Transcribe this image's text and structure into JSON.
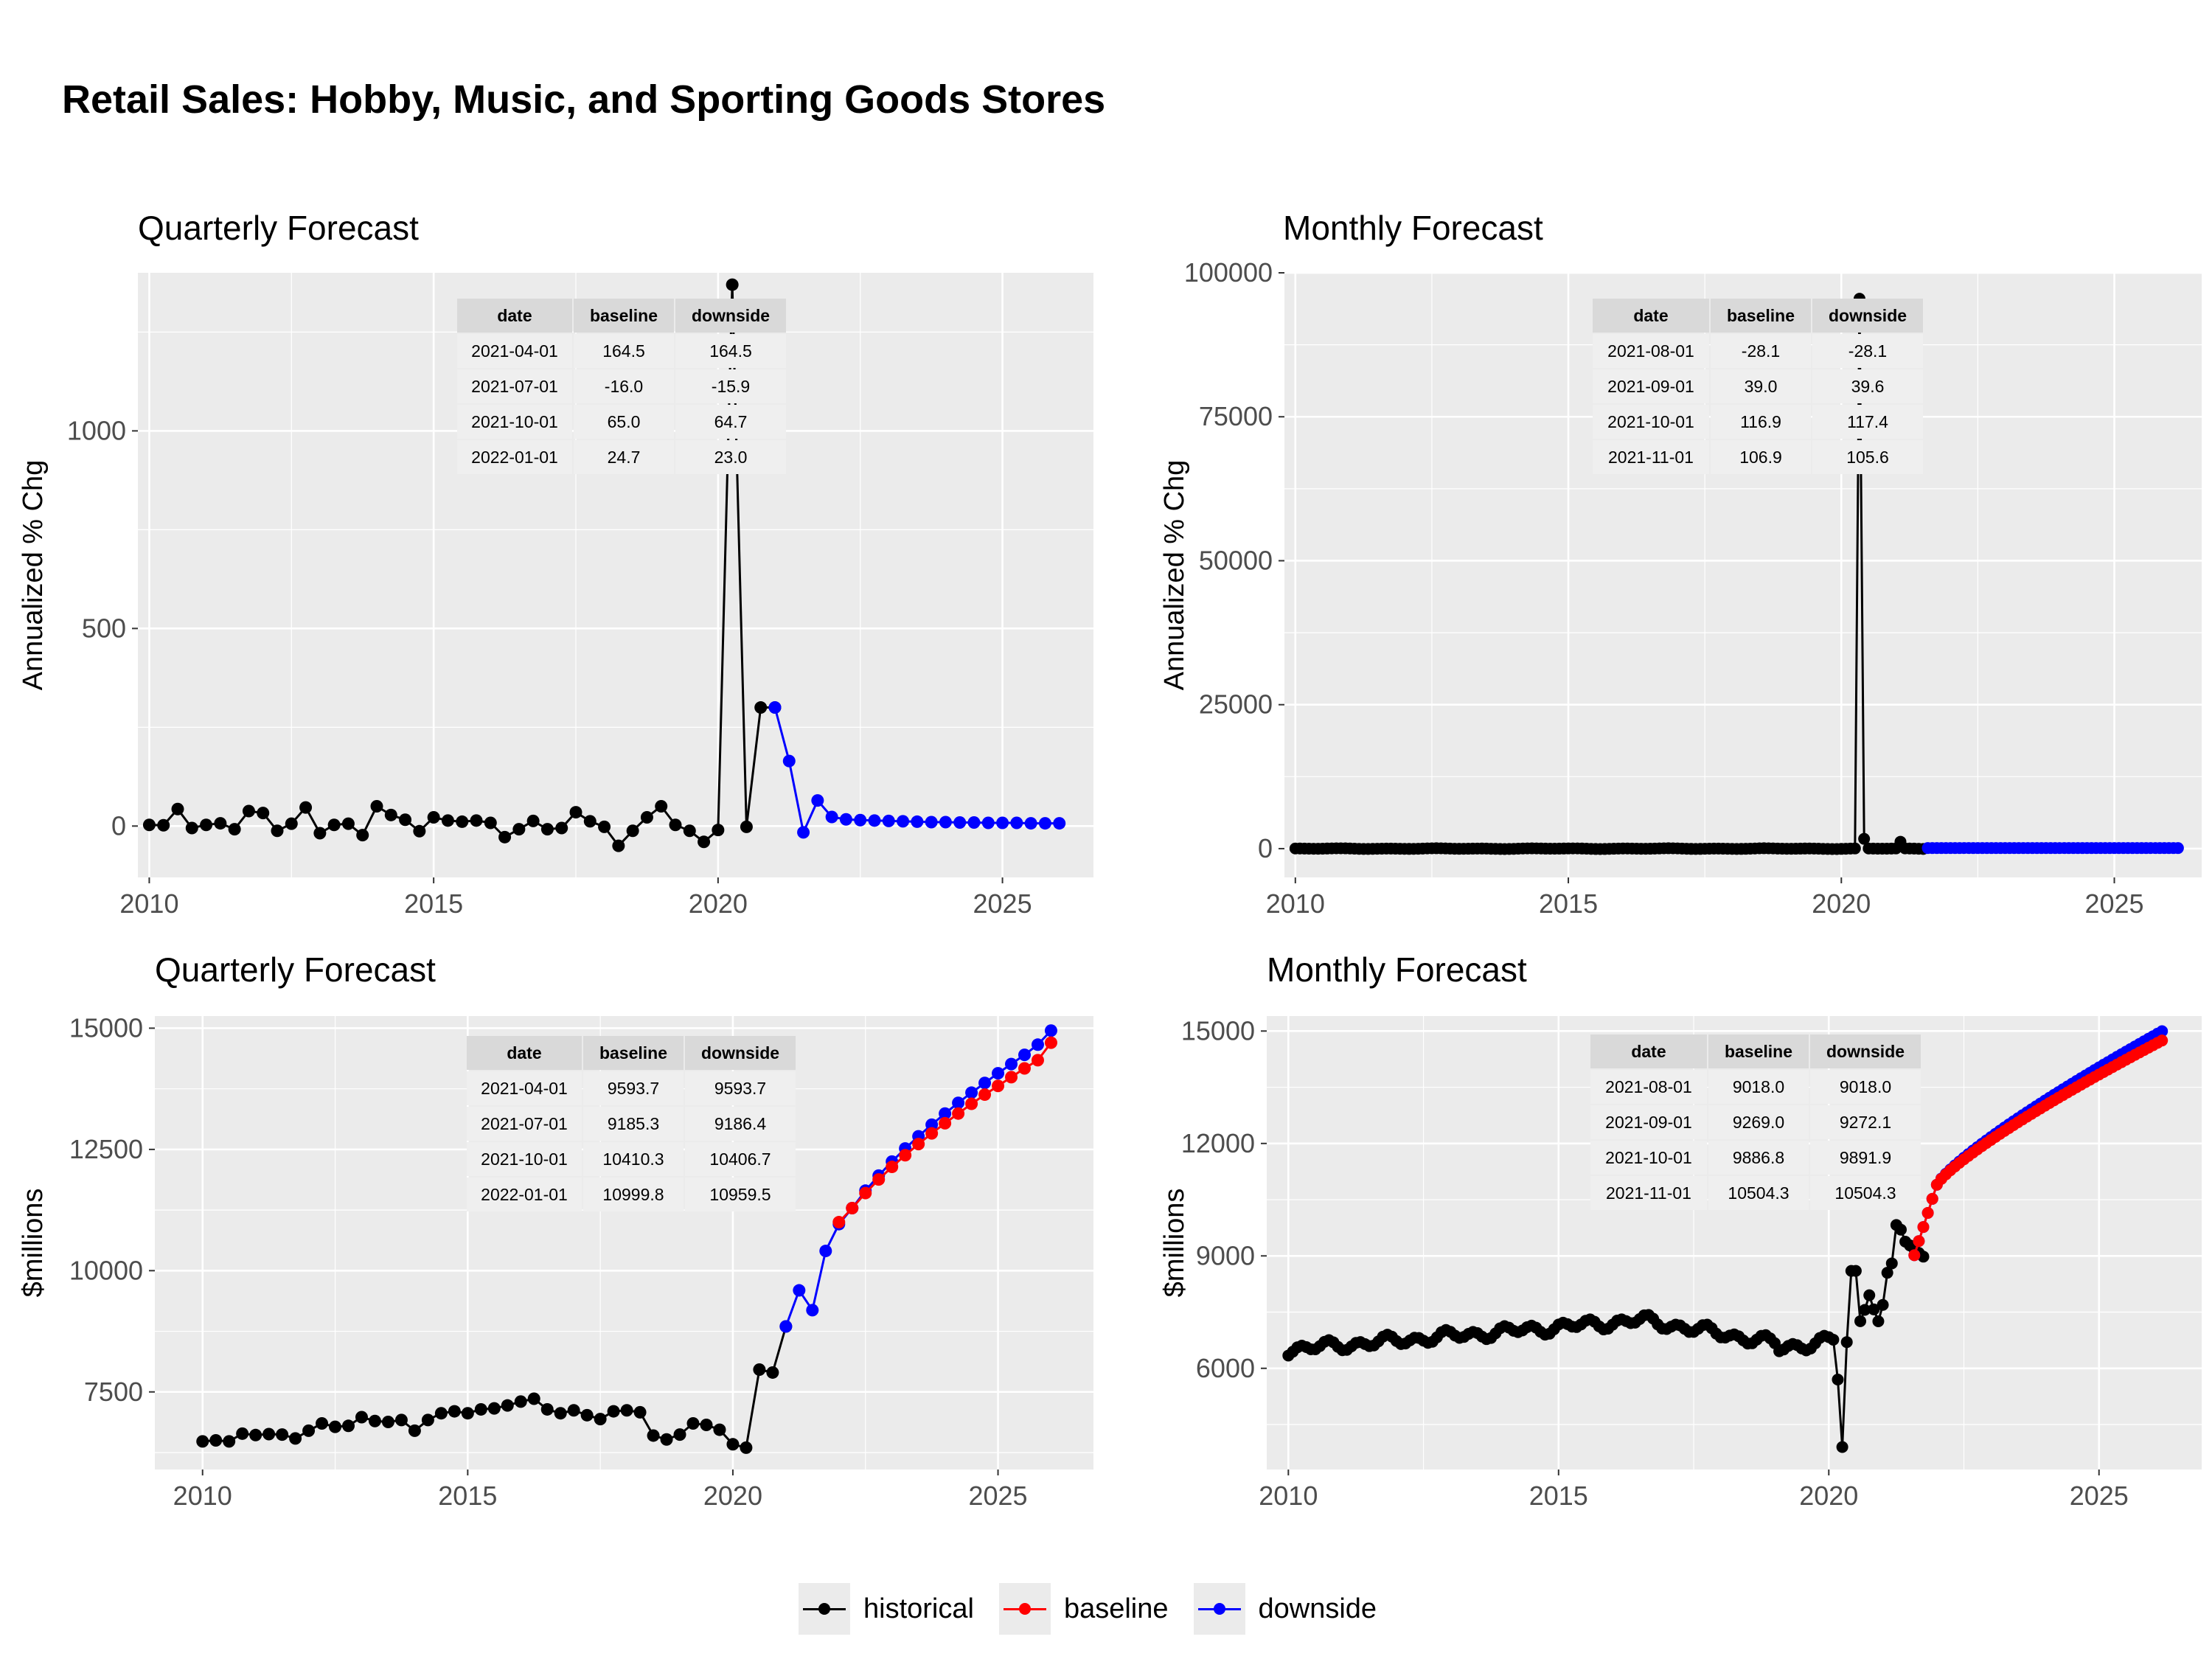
{
  "title": "Retail Sales: Hobby, Music, and Sporting Goods Stores",
  "legend": {
    "items": [
      {
        "label": "historical",
        "color": "#000000"
      },
      {
        "label": "baseline",
        "color": "#ff0000"
      },
      {
        "label": "downside",
        "color": "#0000ff"
      }
    ]
  },
  "chart_data": [
    {
      "id": "q_pct",
      "type": "line",
      "title": "Quarterly Forecast",
      "ylabel": "Annualized % Chg",
      "xlabel": "",
      "xlim": [
        2009.8,
        2026.6
      ],
      "ylim": [
        -130,
        1400
      ],
      "xticks": [
        2010,
        2015,
        2020,
        2025
      ],
      "yticks": [
        0,
        500,
        1000
      ],
      "grid": true,
      "series": [
        {
          "name": "historical",
          "color": "#000000",
          "x": [
            2010.0,
            2010.25,
            2010.5,
            2010.75,
            2011.0,
            2011.25,
            2011.5,
            2011.75,
            2012.0,
            2012.25,
            2012.5,
            2012.75,
            2013.0,
            2013.25,
            2013.5,
            2013.75,
            2014.0,
            2014.25,
            2014.5,
            2014.75,
            2015.0,
            2015.25,
            2015.5,
            2015.75,
            2016.0,
            2016.25,
            2016.5,
            2016.75,
            2017.0,
            2017.25,
            2017.5,
            2017.75,
            2018.0,
            2018.25,
            2018.5,
            2018.75,
            2019.0,
            2019.25,
            2019.5,
            2019.75,
            2020.0,
            2020.25,
            2020.5,
            2020.75,
            2021.0
          ],
          "values": [
            3,
            2,
            43,
            -5,
            3,
            7,
            -8,
            38,
            33,
            -12,
            6,
            47,
            -18,
            3,
            6,
            -23,
            50,
            28,
            16,
            -13,
            22,
            14,
            11,
            14,
            8,
            -28,
            -8,
            13,
            -8,
            -5,
            35,
            12,
            -2,
            -50,
            -12,
            22,
            50,
            3,
            -12,
            -40,
            -10,
            1370,
            -2,
            300,
            300
          ]
        },
        {
          "name": "downside",
          "color": "#0000ff",
          "x": [
            2021.0,
            2021.25,
            2021.5,
            2021.75,
            2022.0,
            2022.25,
            2022.5,
            2022.75,
            2023.0,
            2023.25,
            2023.5,
            2023.75,
            2024.0,
            2024.25,
            2024.5,
            2024.75,
            2025.0,
            2025.25,
            2025.5,
            2025.75,
            2026.0
          ],
          "values": [
            300,
            164.5,
            -15.9,
            64.7,
            23.0,
            17,
            15,
            14,
            13,
            12,
            11,
            10,
            10,
            9,
            9,
            8,
            8,
            8,
            7,
            7,
            7
          ]
        }
      ],
      "table": {
        "headers": [
          "date",
          "baseline",
          "downside"
        ],
        "rows": [
          [
            "2021-04-01",
            "164.5",
            "164.5"
          ],
          [
            "2021-07-01",
            "-16.0",
            "-15.9"
          ],
          [
            "2021-10-01",
            "65.0",
            "64.7"
          ],
          [
            "2022-01-01",
            "24.7",
            "23.0"
          ]
        ]
      }
    },
    {
      "id": "m_pct",
      "type": "line",
      "title": "Monthly Forecast",
      "ylabel": "Annualized % Chg",
      "xlabel": "",
      "xlim": [
        2009.8,
        2026.6
      ],
      "ylim": [
        -5000,
        100000
      ],
      "xticks": [
        2010,
        2015,
        2020,
        2025
      ],
      "yticks": [
        0,
        25000,
        50000,
        75000,
        100000
      ],
      "grid": true,
      "generator": "monthly_pct",
      "series": [
        {
          "name": "historical",
          "color": "#000000",
          "start": 2010.0,
          "end": 2021.5,
          "spike_x": 2020.333,
          "spike_y": 95500,
          "post_spike_y": 1700,
          "bump_x": 2021.08,
          "bump_y": 1200
        },
        {
          "name": "downside",
          "color": "#0000ff",
          "start": 2021.583,
          "end": 2026.167,
          "level": 100
        }
      ],
      "table": {
        "headers": [
          "date",
          "baseline",
          "downside"
        ],
        "rows": [
          [
            "2021-08-01",
            "-28.1",
            "-28.1"
          ],
          [
            "2021-09-01",
            "39.0",
            "39.6"
          ],
          [
            "2021-10-01",
            "116.9",
            "117.4"
          ],
          [
            "2021-11-01",
            "106.9",
            "105.6"
          ]
        ]
      }
    },
    {
      "id": "q_lvl",
      "type": "line",
      "title": "Quarterly Forecast",
      "ylabel": "$millions",
      "xlabel": "",
      "xlim": [
        2009.1,
        2026.8
      ],
      "ylim": [
        5900,
        15250
      ],
      "xticks": [
        2010,
        2015,
        2020,
        2025
      ],
      "yticks": [
        7500,
        10000,
        12500,
        15000
      ],
      "grid": true,
      "series": [
        {
          "name": "historical",
          "color": "#000000",
          "x": [
            2010.0,
            2010.25,
            2010.5,
            2010.75,
            2011.0,
            2011.25,
            2011.5,
            2011.75,
            2012.0,
            2012.25,
            2012.5,
            2012.75,
            2013.0,
            2013.25,
            2013.5,
            2013.75,
            2014.0,
            2014.25,
            2014.5,
            2014.75,
            2015.0,
            2015.25,
            2015.5,
            2015.75,
            2016.0,
            2016.25,
            2016.5,
            2016.75,
            2017.0,
            2017.25,
            2017.5,
            2017.75,
            2018.0,
            2018.25,
            2018.5,
            2018.75,
            2019.0,
            2019.25,
            2019.5,
            2019.75,
            2020.0,
            2020.25,
            2020.5,
            2020.75,
            2021.0
          ],
          "values": [
            6480,
            6500,
            6480,
            6640,
            6610,
            6630,
            6620,
            6540,
            6700,
            6850,
            6780,
            6800,
            6980,
            6900,
            6880,
            6920,
            6700,
            6920,
            7060,
            7100,
            7060,
            7140,
            7160,
            7220,
            7300,
            7360,
            7140,
            7060,
            7120,
            7020,
            6940,
            7100,
            7120,
            7080,
            6600,
            6520,
            6620,
            6850,
            6820,
            6720,
            6420,
            6350,
            7960,
            7900,
            8850
          ]
        },
        {
          "name": "baseline",
          "color": "#ff0000",
          "x": [
            2022.0,
            2022.25,
            2022.5,
            2022.75,
            2023.0,
            2023.25,
            2023.5,
            2023.75,
            2024.0,
            2024.25,
            2024.5,
            2024.75,
            2025.0,
            2025.25,
            2025.5,
            2025.75,
            2026.0
          ],
          "values": [
            10999.8,
            11290,
            11600,
            11880,
            12140,
            12380,
            12610,
            12830,
            13040,
            13240,
            13440,
            13630,
            13810,
            13990,
            14170,
            14340,
            14700
          ]
        },
        {
          "name": "downside",
          "color": "#0000ff",
          "x": [
            2021.0,
            2021.25,
            2021.5,
            2021.75,
            2022.0,
            2022.25,
            2022.5,
            2022.75,
            2023.0,
            2023.25,
            2023.5,
            2023.75,
            2024.0,
            2024.25,
            2024.5,
            2024.75,
            2025.0,
            2025.25,
            2025.5,
            2025.75,
            2026.0
          ],
          "values": [
            8850,
            9593.7,
            9186.4,
            10406.7,
            10959.5,
            11290,
            11650,
            11960,
            12250,
            12520,
            12770,
            13010,
            13240,
            13460,
            13670,
            13870,
            14070,
            14260,
            14450,
            14660,
            14950
          ]
        }
      ],
      "table": {
        "headers": [
          "date",
          "baseline",
          "downside"
        ],
        "rows": [
          [
            "2021-04-01",
            "9593.7",
            "9593.7"
          ],
          [
            "2021-07-01",
            "9185.3",
            "9186.4"
          ],
          [
            "2021-10-01",
            "10410.3",
            "10406.7"
          ],
          [
            "2022-01-01",
            "10999.8",
            "10959.5"
          ]
        ]
      }
    },
    {
      "id": "m_lvl",
      "type": "line",
      "title": "Monthly Forecast",
      "ylabel": "$millions",
      "xlabel": "",
      "xlim": [
        2009.6,
        2026.9
      ],
      "ylim": [
        3300,
        15400
      ],
      "xticks": [
        2010,
        2015,
        2020,
        2025
      ],
      "yticks": [
        6000,
        9000,
        12000,
        15000
      ],
      "grid": true,
      "generator": "monthly_level",
      "series": [
        {
          "name": "historical",
          "color": "#000000"
        },
        {
          "name": "baseline",
          "color": "#ff0000",
          "end_value": 14750
        },
        {
          "name": "downside",
          "color": "#0000ff",
          "end_value": 15000
        }
      ],
      "table": {
        "headers": [
          "date",
          "baseline",
          "downside"
        ],
        "rows": [
          [
            "2021-08-01",
            "9018.0",
            "9018.0"
          ],
          [
            "2021-09-01",
            "9269.0",
            "9272.1"
          ],
          [
            "2021-10-01",
            "9886.8",
            "9891.9"
          ],
          [
            "2021-11-01",
            "10504.3",
            "10504.3"
          ]
        ]
      }
    }
  ]
}
